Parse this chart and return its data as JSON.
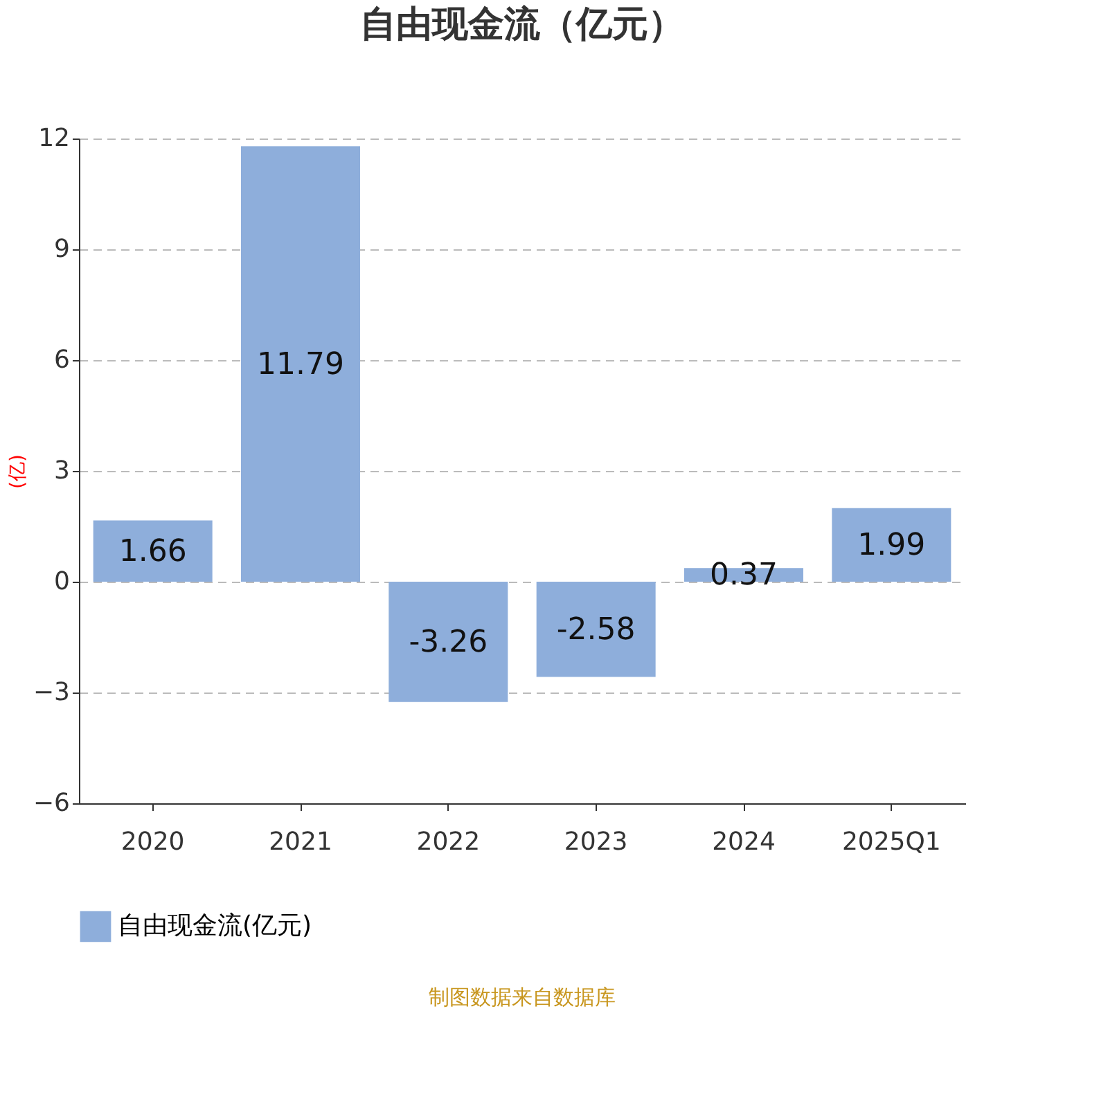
{
  "chart_data": {
    "type": "bar",
    "title": "自由现金流（亿元）",
    "ylabel": "(亿)",
    "categories": [
      "2020",
      "2021",
      "2022",
      "2023",
      "2024",
      "2025Q1"
    ],
    "series": [
      {
        "name": "自由现金流(亿元)",
        "color": "#8eaedb",
        "values": [
          1.66,
          11.79,
          -3.26,
          -2.58,
          0.37,
          1.99
        ]
      }
    ],
    "ylim": [
      -6,
      12
    ],
    "yticks": [
      -6,
      -3,
      0,
      3,
      6,
      9,
      12
    ],
    "grid": "y",
    "legend": "bottom",
    "data_labels": true,
    "annotations": [
      "制图数据来自数据库"
    ]
  }
}
